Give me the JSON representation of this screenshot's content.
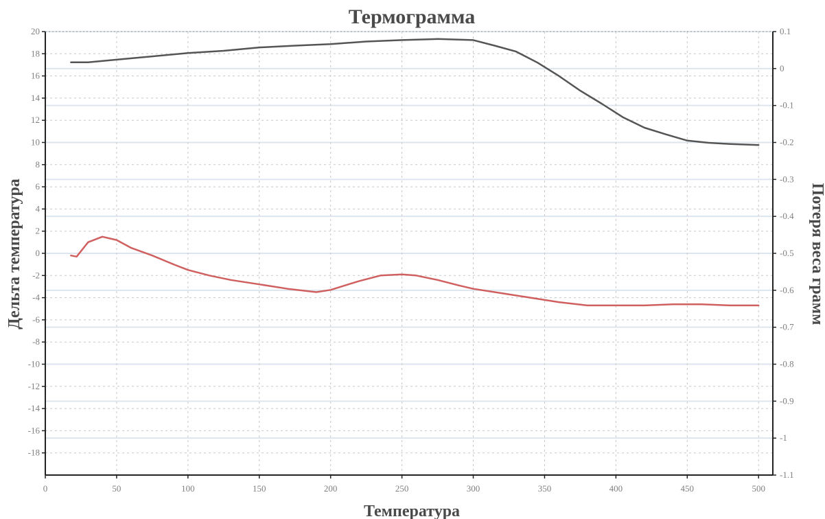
{
  "chart_data": {
    "type": "line",
    "title": "Термограмма",
    "xlabel": "Температура",
    "ylabel_left": "Дельта температура",
    "ylabel_right": "Потеря веса грамм",
    "xlim": [
      0,
      510
    ],
    "ylim_left": [
      -20,
      20
    ],
    "ylim_right": [
      -1.1,
      0.1
    ],
    "x_ticks": [
      0,
      50,
      100,
      150,
      200,
      250,
      300,
      350,
      400,
      450,
      500
    ],
    "x_tick_labels": [
      "0",
      "50",
      "100",
      "150",
      "200",
      "250",
      "300",
      "350",
      "400",
      "450",
      "500"
    ],
    "y_left_ticks": [
      20,
      18,
      16,
      14,
      12,
      10,
      8,
      6,
      4,
      2,
      0,
      -2,
      -4,
      -6,
      -8,
      -10,
      -12,
      -14,
      -16,
      -18
    ],
    "y_left_tick_labels": [
      "20",
      "18",
      "16",
      "14",
      "12",
      "10",
      "8",
      "6",
      "4",
      "2",
      "0",
      "-2",
      "-4",
      "-6",
      "-8",
      "-10",
      "-12",
      "-14",
      "-16",
      "-18"
    ],
    "y_right_ticks": [
      0.1,
      0,
      -0.1,
      -0.2,
      -0.3,
      -0.4,
      -0.5,
      -0.6,
      -0.7,
      -0.8,
      -0.9,
      -1.0,
      -1.1
    ],
    "y_right_tick_labels": [
      "0.1",
      "0",
      "-0.1",
      "-0.2",
      "-0.3",
      "-0.4",
      "-0.5",
      "-0.6",
      "-0.7",
      "-0.8",
      "-0.9",
      "-1",
      "-1.1"
    ],
    "grid": true,
    "series": [
      {
        "axis": "right",
        "color": "#555555",
        "x": [
          18,
          30,
          50,
          75,
          100,
          125,
          150,
          175,
          200,
          225,
          250,
          275,
          300,
          315,
          330,
          345,
          360,
          375,
          390,
          405,
          420,
          435,
          450,
          465,
          480,
          500
        ],
        "values": [
          0.017,
          0.017,
          0.024,
          0.033,
          0.042,
          0.048,
          0.057,
          0.062,
          0.066,
          0.073,
          0.077,
          0.08,
          0.077,
          0.062,
          0.046,
          0.016,
          -0.02,
          -0.06,
          -0.095,
          -0.132,
          -0.16,
          -0.178,
          -0.195,
          -0.201,
          -0.204,
          -0.207
        ]
      },
      {
        "axis": "left",
        "color": "#d06060",
        "x": [
          18,
          22,
          30,
          40,
          50,
          60,
          75,
          90,
          100,
          115,
          130,
          150,
          170,
          190,
          200,
          210,
          220,
          235,
          250,
          260,
          275,
          290,
          300,
          320,
          340,
          360,
          380,
          400,
          420,
          440,
          460,
          480,
          500
        ],
        "values": [
          -0.2,
          -0.3,
          1.0,
          1.5,
          1.2,
          0.5,
          -0.2,
          -1.0,
          -1.5,
          -2.0,
          -2.4,
          -2.8,
          -3.2,
          -3.5,
          -3.3,
          -2.9,
          -2.5,
          -2.0,
          -1.9,
          -2.0,
          -2.4,
          -2.9,
          -3.2,
          -3.6,
          -4.0,
          -4.4,
          -4.7,
          -4.7,
          -4.7,
          -4.6,
          -4.6,
          -4.7,
          -4.7
        ]
      }
    ]
  }
}
